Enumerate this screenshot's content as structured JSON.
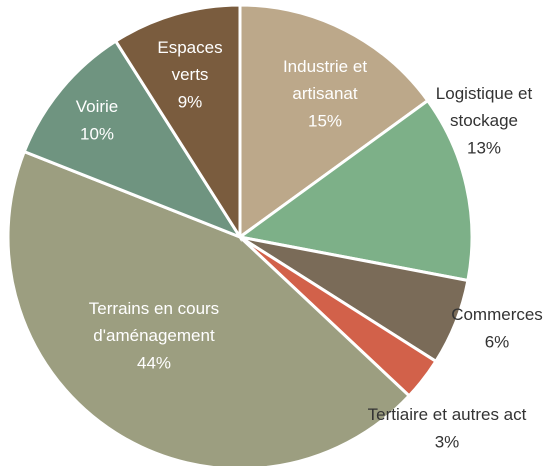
{
  "chart_data": {
    "type": "pie",
    "categories": [
      "Industrie et artisanat",
      "Logistique et stockage",
      "Commerces",
      "Tertiaire et autres act",
      "Terrains en cours d'aménagement",
      "Voirie",
      "Espaces verts"
    ],
    "values": [
      15,
      13,
      6,
      3,
      44,
      10,
      9
    ],
    "value_labels": [
      "15%",
      "13%",
      "6%",
      "3%",
      "44%",
      "10%",
      "9%"
    ],
    "colors": [
      "#bca88a",
      "#7db088",
      "#7a6b58",
      "#d2614a",
      "#9c9e80",
      "#6f9480",
      "#7a5c3e"
    ]
  }
}
